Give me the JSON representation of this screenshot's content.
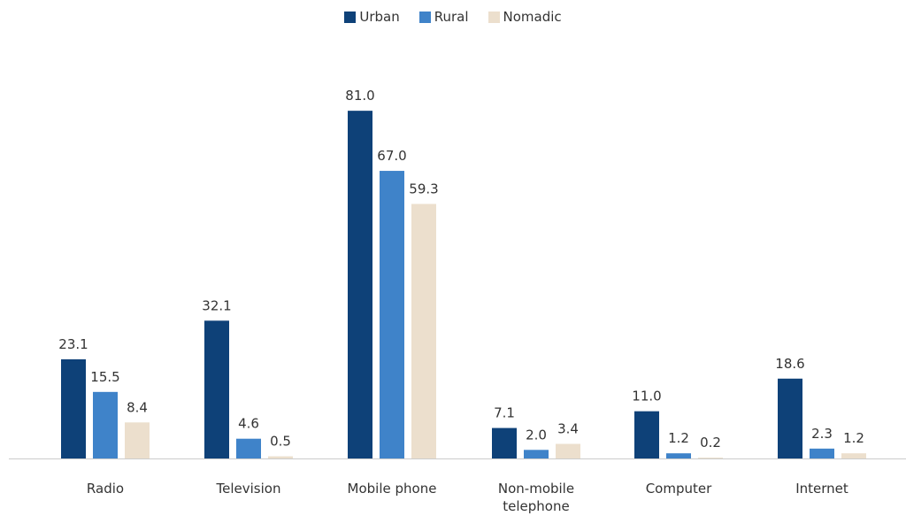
{
  "chart_data": {
    "type": "bar",
    "categories": [
      "Radio",
      "Television",
      "Mobile phone",
      "Non-mobile telephone",
      "Computer",
      "Internet"
    ],
    "series": [
      {
        "name": "Urban",
        "color": "#0e4178",
        "values": [
          23.1,
          32.1,
          81.0,
          7.1,
          11.0,
          18.6
        ]
      },
      {
        "name": "Rural",
        "color": "#3f83c9",
        "values": [
          15.5,
          4.6,
          67.0,
          2.0,
          1.2,
          2.3
        ]
      },
      {
        "name": "Nomadic",
        "color": "#ecdfcd",
        "values": [
          8.4,
          0.5,
          59.3,
          3.4,
          0.2,
          1.2
        ]
      }
    ],
    "ylim": [
      0,
      100
    ],
    "grid": false,
    "legend_position": "top-center",
    "data_labels": true
  }
}
